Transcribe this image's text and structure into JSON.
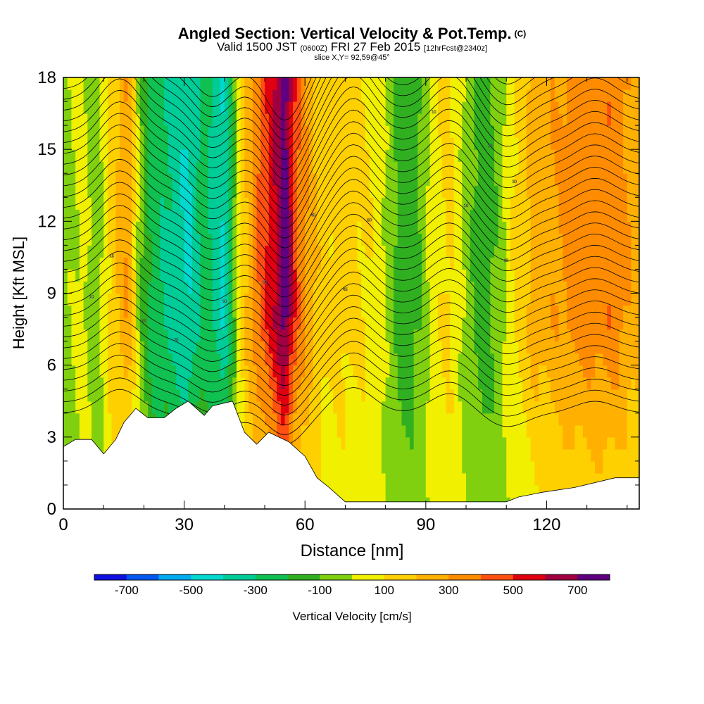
{
  "header": {
    "title": "Angled Section: Vertical Velocity & Pot.Temp.",
    "title_tag": "(C)",
    "valid_prefix": "Valid 1500 JST",
    "valid_utc": "(0600Z)",
    "valid_date": "FRI 27 Feb 2015",
    "forecast_tag": "[12hrFcst@2340z]",
    "slice": "slice X,Y= 92,59@45°"
  },
  "chart_data": {
    "type": "heatmap",
    "title": "Angled Section: Vertical Velocity & Pot.Temp.",
    "xlabel": "Distance [nm]",
    "ylabel": "Height [Kft MSL]",
    "xlim": [
      0,
      143
    ],
    "ylim": [
      0,
      18
    ],
    "x_ticks": [
      0,
      30,
      60,
      90,
      120
    ],
    "y_ticks": [
      0,
      3,
      6,
      9,
      12,
      15,
      18
    ],
    "colorbar": {
      "label": "Vertical Velocity [cm/s]",
      "tick_labels": [
        "-700",
        "-500",
        "-300",
        "-100",
        "100",
        "300",
        "500",
        "700"
      ],
      "tick_values": [
        -700,
        -500,
        -300,
        -100,
        100,
        300,
        500,
        700
      ],
      "bins": [
        -800,
        -700,
        -600,
        -500,
        -400,
        -300,
        -200,
        -100,
        0,
        100,
        200,
        300,
        400,
        500,
        600,
        700,
        800
      ],
      "colors": [
        "#1010e0",
        "#0058f0",
        "#00aaf0",
        "#00d8d0",
        "#00cc98",
        "#10c050",
        "#30b020",
        "#80d010",
        "#f0f000",
        "#ffd000",
        "#ffb000",
        "#ff8c00",
        "#ff5010",
        "#e00010",
        "#a00040",
        "#600080"
      ]
    },
    "columns": [
      {
        "x": 0,
        "w": -50
      },
      {
        "x": 5,
        "w": 40
      },
      {
        "x": 8,
        "w": -80
      },
      {
        "x": 12,
        "w": 150
      },
      {
        "x": 16,
        "w": 300
      },
      {
        "x": 19,
        "w": -60
      },
      {
        "x": 22,
        "w": -250
      },
      {
        "x": 27,
        "w": -330
      },
      {
        "x": 31,
        "w": -420
      },
      {
        "x": 35,
        "w": -250
      },
      {
        "x": 40,
        "w": -420
      },
      {
        "x": 44,
        "w": 100
      },
      {
        "x": 48,
        "w": 380
      },
      {
        "x": 52,
        "w": 560
      },
      {
        "x": 55,
        "w": 780
      },
      {
        "x": 58,
        "w": 420
      },
      {
        "x": 62,
        "w": 210
      },
      {
        "x": 66,
        "w": 120
      },
      {
        "x": 70,
        "w": 140
      },
      {
        "x": 75,
        "w": 110
      },
      {
        "x": 79,
        "w": 40
      },
      {
        "x": 84,
        "w": -170
      },
      {
        "x": 88,
        "w": -120
      },
      {
        "x": 92,
        "w": 60
      },
      {
        "x": 96,
        "w": 130
      },
      {
        "x": 100,
        "w": -40
      },
      {
        "x": 104,
        "w": -170
      },
      {
        "x": 108,
        "w": -70
      },
      {
        "x": 112,
        "w": 110
      },
      {
        "x": 117,
        "w": 240
      },
      {
        "x": 121,
        "w": 280
      },
      {
        "x": 126,
        "w": 330
      },
      {
        "x": 131,
        "w": 360
      },
      {
        "x": 136,
        "w": 380
      },
      {
        "x": 140,
        "w": 300
      },
      {
        "x": 143,
        "w": 250
      }
    ],
    "terrain": [
      [
        0,
        2.6
      ],
      [
        3,
        2.9
      ],
      [
        7,
        2.9
      ],
      [
        10,
        2.3
      ],
      [
        13,
        2.9
      ],
      [
        15,
        3.6
      ],
      [
        18,
        4.2
      ],
      [
        21,
        3.8
      ],
      [
        25,
        3.8
      ],
      [
        28,
        4.2
      ],
      [
        31,
        4.5
      ],
      [
        35,
        3.9
      ],
      [
        37,
        4.3
      ],
      [
        42,
        4.5
      ],
      [
        45,
        3.2
      ],
      [
        48,
        2.7
      ],
      [
        51,
        3.2
      ],
      [
        56,
        2.8
      ],
      [
        60,
        2.2
      ],
      [
        63,
        1.3
      ],
      [
        66,
        0.9
      ],
      [
        70,
        0.3
      ],
      [
        80,
        0.3
      ],
      [
        90,
        0.3
      ],
      [
        100,
        0.3
      ],
      [
        110,
        0.3
      ],
      [
        113,
        0.5
      ],
      [
        119,
        0.7
      ],
      [
        127,
        0.9
      ],
      [
        137,
        1.3
      ],
      [
        143,
        1.3
      ]
    ],
    "isentrope_labels": [
      "10",
      "15",
      "20",
      "25",
      "30",
      "35",
      "40",
      "45",
      "50"
    ]
  }
}
